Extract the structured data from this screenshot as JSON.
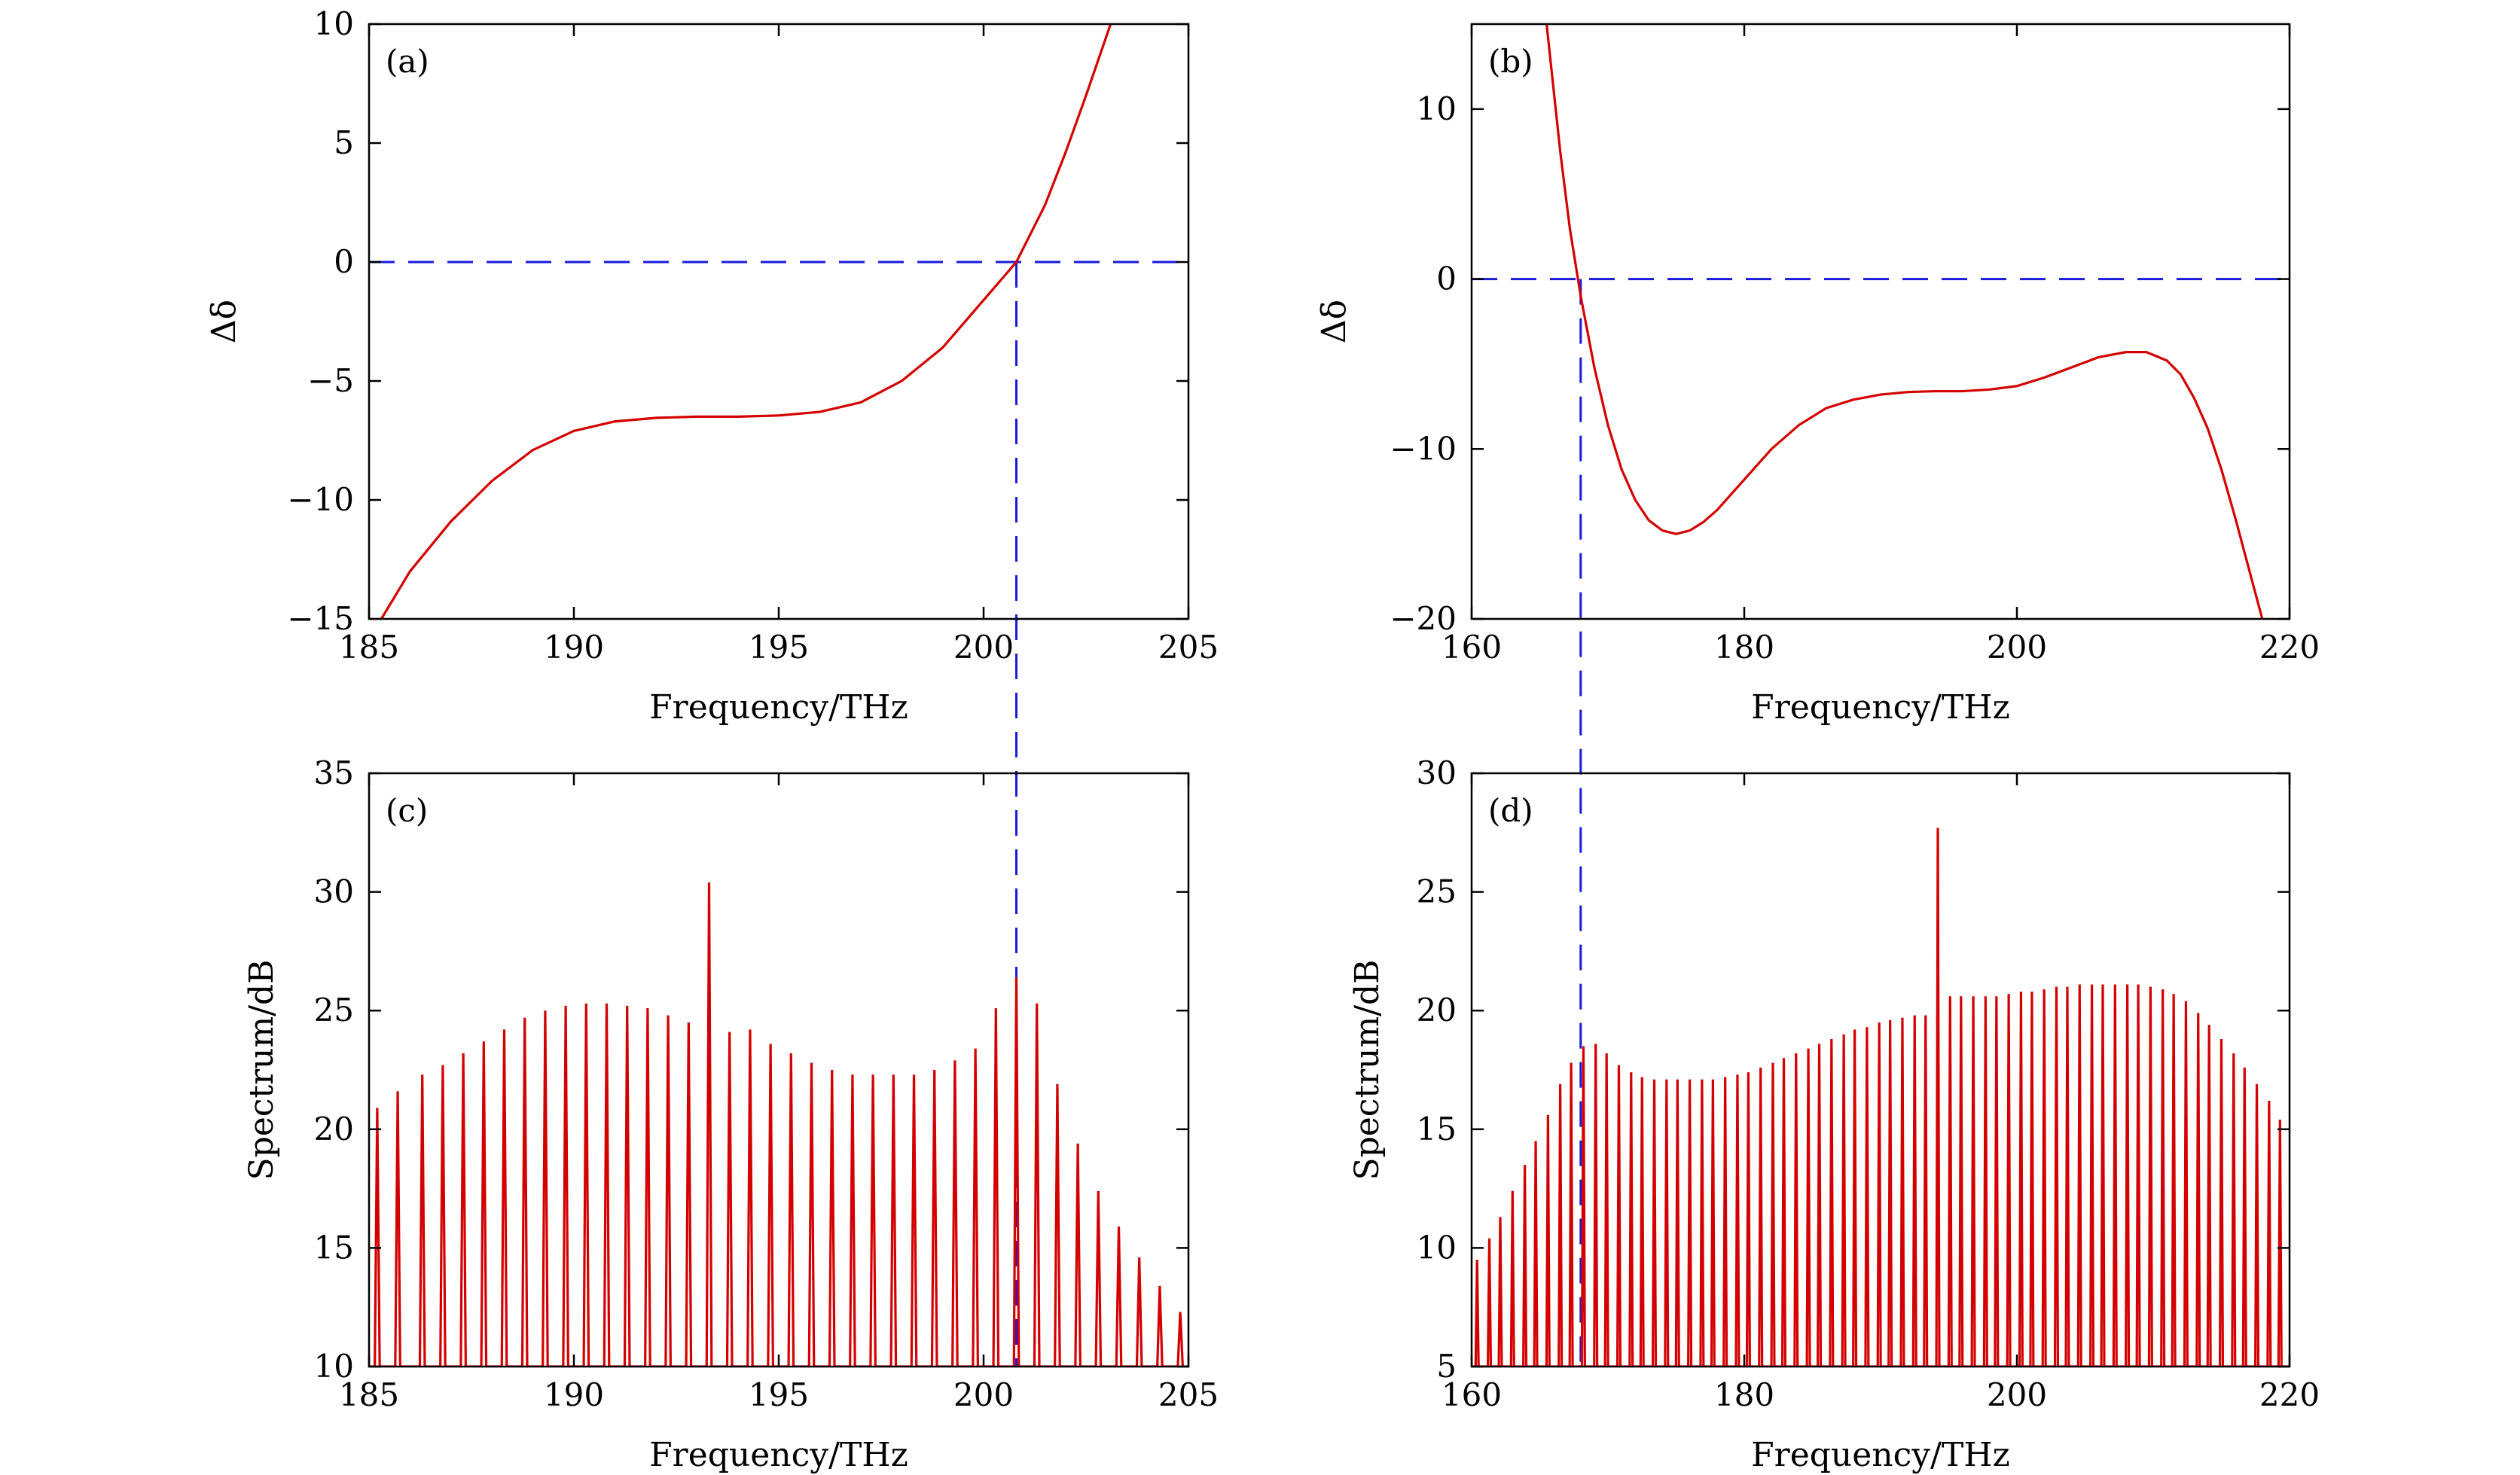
{
  "figure": {
    "colors": {
      "curve": "#d40000",
      "guide": "#1a1adc",
      "axis": "#000000"
    },
    "chart_data": [
      {
        "id": "a",
        "type": "line",
        "panel_label": "(a)",
        "xlabel": "Frequency/THz",
        "ylabel": "Δδ",
        "xlim": [
          185,
          205
        ],
        "ylim": [
          -15,
          10
        ],
        "xticks": [
          185,
          190,
          195,
          200,
          205
        ],
        "yticks": [
          -15,
          -10,
          -5,
          0,
          5,
          10
        ],
        "grid": false,
        "series": [
          {
            "x": [
              185.3,
              186,
              187,
              188,
              189,
              190,
              191,
              192,
              193,
              194,
              195,
              196,
              197,
              198,
              199,
              200,
              200.8,
              201.5,
              202,
              202.5,
              203.1
            ],
            "y": [
              -15.0,
              -13.0,
              -10.9,
              -9.2,
              -7.9,
              -7.1,
              -6.7,
              -6.55,
              -6.5,
              -6.5,
              -6.45,
              -6.3,
              -5.9,
              -5.0,
              -3.6,
              -1.6,
              0.0,
              2.4,
              4.6,
              7.0,
              10.0
            ]
          }
        ],
        "reference_lines": [
          {
            "orientation": "horizontal",
            "value": 0
          },
          {
            "orientation": "vertical",
            "value": 200.8
          }
        ]
      },
      {
        "id": "b",
        "type": "line",
        "panel_label": "(b)",
        "xlabel": "Frequency/THz",
        "ylabel": "Δδ",
        "xlim": [
          160,
          220
        ],
        "ylim": [
          -20,
          15
        ],
        "xticks": [
          160,
          180,
          200,
          220
        ],
        "yticks": [
          -20,
          -10,
          0,
          10
        ],
        "grid": false,
        "series": [
          {
            "x": [
              165.5,
              166.5,
              167.2,
              168,
              169,
              170,
              171,
              172,
              173,
              174,
              175,
              176,
              177,
              178,
              180,
              182,
              184,
              186,
              188,
              190,
              192,
              194,
              196,
              198,
              200,
              202,
              204,
              206,
              208,
              209.5,
              211,
              212,
              213,
              214,
              215,
              216,
              217,
              218
            ],
            "y": [
              15.0,
              7.5,
              3.0,
              -1.0,
              -5.2,
              -8.6,
              -11.2,
              -13.0,
              -14.2,
              -14.8,
              -15.0,
              -14.8,
              -14.3,
              -13.6,
              -11.8,
              -10.0,
              -8.6,
              -7.6,
              -7.1,
              -6.8,
              -6.65,
              -6.6,
              -6.6,
              -6.5,
              -6.3,
              -5.8,
              -5.2,
              -4.6,
              -4.3,
              -4.3,
              -4.8,
              -5.6,
              -7.0,
              -8.8,
              -11.2,
              -14.0,
              -17.0,
              -20.0
            ]
          }
        ],
        "reference_lines": [
          {
            "orientation": "horizontal",
            "value": 0
          },
          {
            "orientation": "vertical",
            "value": 168
          }
        ]
      },
      {
        "id": "c",
        "type": "line",
        "panel_label": "(c)",
        "xlabel": "Frequency/THz",
        "ylabel": "Spectrum/dB",
        "xlim": [
          185,
          205
        ],
        "ylim": [
          10,
          35
        ],
        "xticks": [
          185,
          190,
          195,
          200,
          205
        ],
        "yticks": [
          10,
          15,
          20,
          25,
          30,
          35
        ],
        "grid": false,
        "comb_floor": 10,
        "series": [
          {
            "x": [
              185.2,
              185.7,
              186.3,
              186.8,
              187.3,
              187.8,
              188.3,
              188.8,
              189.3,
              189.8,
              190.3,
              190.8,
              191.3,
              191.8,
              192.3,
              192.8,
              193.3,
              193.8,
              194.3,
              194.8,
              195.3,
              195.8,
              196.3,
              196.8,
              197.3,
              197.8,
              198.3,
              198.8,
              199.3,
              199.8,
              200.3,
              200.8,
              201.3,
              201.8,
              202.3,
              202.8,
              203.3,
              203.8,
              204.3,
              204.8
            ],
            "y": [
              20.9,
              21.6,
              22.3,
              22.7,
              23.2,
              23.7,
              24.2,
              24.7,
              25.0,
              25.2,
              25.3,
              25.3,
              25.2,
              25.1,
              24.8,
              24.5,
              30.4,
              24.1,
              24.2,
              23.6,
              23.2,
              22.8,
              22.5,
              22.3,
              22.3,
              22.3,
              22.3,
              22.5,
              22.9,
              23.4,
              25.1,
              26.4,
              25.3,
              21.9,
              19.4,
              17.4,
              15.9,
              14.6,
              13.4,
              12.3
            ]
          }
        ],
        "reference_lines": [
          {
            "orientation": "vertical",
            "value": 200.8
          }
        ]
      },
      {
        "id": "d",
        "type": "line",
        "panel_label": "(d)",
        "xlabel": "Frequency/THz",
        "ylabel": "Spectrum/dB",
        "xlim": [
          160,
          220
        ],
        "ylim": [
          5,
          30
        ],
        "xticks": [
          160,
          180,
          200,
          220
        ],
        "yticks": [
          5,
          10,
          15,
          20,
          25,
          30
        ],
        "grid": false,
        "comb_floor": 5,
        "series": [
          {
            "x": [
              160.4,
              161.3,
              162.1,
              163.0,
              163.9,
              164.7,
              165.6,
              166.5,
              167.3,
              168.2,
              169.1,
              169.9,
              170.8,
              171.7,
              172.5,
              173.4,
              174.3,
              175.1,
              176.0,
              176.9,
              177.7,
              178.6,
              179.5,
              180.3,
              181.2,
              182.1,
              182.9,
              183.8,
              184.7,
              185.5,
              186.4,
              187.3,
              188.1,
              189.0,
              189.9,
              190.7,
              191.6,
              192.5,
              193.3,
              194.2,
              195.1,
              195.9,
              196.8,
              197.7,
              198.5,
              199.4,
              200.3,
              201.1,
              202.0,
              202.9,
              203.7,
              204.6,
              205.5,
              206.3,
              207.2,
              208.1,
              208.9,
              209.8,
              210.7,
              211.5,
              212.4,
              213.3,
              214.1,
              215.0,
              215.9,
              216.7,
              217.6,
              218.5,
              219.3
            ],
            "y": [
              9.5,
              10.4,
              11.3,
              12.4,
              13.5,
              14.5,
              15.6,
              16.9,
              17.8,
              18.5,
              18.6,
              18.2,
              17.7,
              17.4,
              17.2,
              17.1,
              17.1,
              17.1,
              17.1,
              17.1,
              17.1,
              17.2,
              17.3,
              17.4,
              17.6,
              17.8,
              18.0,
              18.2,
              18.4,
              18.6,
              18.8,
              19.0,
              19.2,
              19.3,
              19.5,
              19.6,
              19.7,
              19.8,
              19.8,
              27.7,
              20.6,
              20.6,
              20.6,
              20.6,
              20.6,
              20.7,
              20.8,
              20.8,
              20.9,
              21.0,
              21.0,
              21.1,
              21.1,
              21.1,
              21.1,
              21.1,
              21.1,
              21.0,
              20.9,
              20.7,
              20.4,
              19.9,
              19.4,
              18.8,
              18.2,
              17.6,
              16.9,
              16.2,
              15.4
            ]
          }
        ],
        "reference_lines": [
          {
            "orientation": "vertical",
            "value": 168
          }
        ]
      }
    ]
  }
}
